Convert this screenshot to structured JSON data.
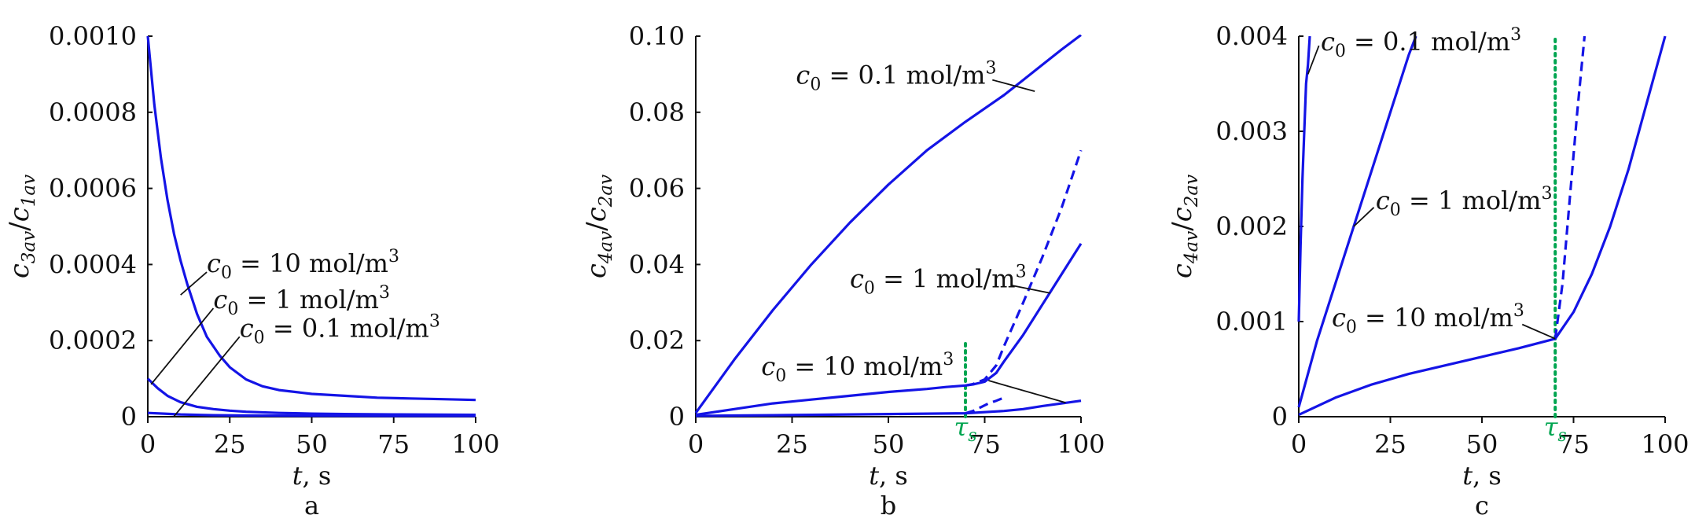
{
  "chart_data": [
    {
      "panel": "a",
      "type": "line",
      "xlabel": "t, s",
      "ylabel": "c3av/c1av",
      "ylabel_parts": {
        "base1": "c",
        "sub1": "3av",
        "slash": "/",
        "base2": "c",
        "sub2": "1av"
      },
      "xlim": [
        0,
        100
      ],
      "ylim": [
        0,
        0.001
      ],
      "xticks": [
        "0",
        "25",
        "50",
        "75",
        "100"
      ],
      "yticks": [
        "0",
        "0.0002",
        "0.0004",
        "0.0006",
        "0.0008",
        "0.0010"
      ],
      "series": [
        {
          "name": "c0 = 10 mol/m3",
          "label_main": "c",
          "label_sub": "0",
          "label_rest": " = 10 mol/m",
          "label_sup": "3",
          "style": "solid",
          "x": [
            0,
            2,
            4,
            6,
            8,
            10,
            12,
            15,
            18,
            20,
            22,
            25,
            30,
            35,
            40,
            50,
            60,
            70,
            80,
            90,
            100
          ],
          "y": [
            0.001,
            0.00082,
            0.00068,
            0.00057,
            0.00048,
            0.00041,
            0.00035,
            0.00027,
            0.00021,
            0.000185,
            0.00016,
            0.00013,
            9.8e-05,
            8e-05,
            7e-05,
            6e-05,
            5.5e-05,
            5e-05,
            4.8e-05,
            4.6e-05,
            4.4e-05
          ]
        },
        {
          "name": "c0 = 1 mol/m3",
          "label_main": "c",
          "label_sub": "0",
          "label_rest": " = 1 mol/m",
          "label_sup": "3",
          "style": "solid",
          "x": [
            0,
            3,
            6,
            10,
            15,
            20,
            25,
            30,
            40,
            50,
            60,
            75,
            100
          ],
          "y": [
            0.0001,
            7.5e-05,
            5.5e-05,
            3.8e-05,
            2.6e-05,
            2e-05,
            1.6e-05,
            1.3e-05,
            1e-05,
            8e-06,
            7e-06,
            6e-06,
            5e-06
          ]
        },
        {
          "name": "c0 = 0.1 mol/m3",
          "label_main": "c",
          "label_sub": "0",
          "label_rest": " = 0.1 mol/m",
          "label_sup": "3",
          "style": "solid",
          "x": [
            0,
            5,
            10,
            20,
            30,
            50,
            75,
            100
          ],
          "y": [
            1e-05,
            8e-06,
            6e-06,
            4e-06,
            3e-06,
            2.5e-06,
            2e-06,
            2e-06
          ]
        }
      ],
      "annotations": [
        {
          "series": 0,
          "text_x": 18,
          "text_y": 0.00038,
          "point_x": 10,
          "point_y": 0.00032
        },
        {
          "series": 1,
          "text_x": 20,
          "text_y": 0.000285,
          "point_x": 1,
          "point_y": 8.5e-05
        },
        {
          "series": 2,
          "text_x": 28,
          "text_y": 0.00021,
          "point_x": 8,
          "point_y": 1e-06
        }
      ],
      "sublabel": "a"
    },
    {
      "panel": "b",
      "type": "line",
      "xlabel": "t, s",
      "ylabel": "c4av/c2av",
      "ylabel_parts": {
        "base1": "c",
        "sub1": "4av",
        "slash": "/",
        "base2": "c",
        "sub2": "2av"
      },
      "xlim": [
        0,
        100
      ],
      "ylim": [
        0,
        0.1
      ],
      "xticks": [
        "0",
        "25",
        "50",
        "75",
        "100"
      ],
      "yticks": [
        "0",
        "0.02",
        "0.04",
        "0.06",
        "0.08",
        "0.10"
      ],
      "ts_x": 70,
      "ts_label": "τs",
      "series": [
        {
          "name": "c0 = 0.1 mol/m3",
          "style": "solid",
          "x": [
            0,
            5,
            10,
            20,
            30,
            40,
            50,
            60,
            70,
            80,
            85,
            90,
            95,
            100
          ],
          "y": [
            0.001,
            0.008,
            0.015,
            0.028,
            0.04,
            0.051,
            0.061,
            0.07,
            0.0775,
            0.0845,
            0.0885,
            0.0925,
            0.0965,
            0.1003
          ]
        },
        {
          "name": "c0 = 1 mol/m3",
          "style": "solid",
          "x": [
            0,
            10,
            20,
            30,
            40,
            50,
            60,
            65,
            70,
            72,
            75,
            78,
            80,
            85,
            90,
            95,
            100
          ],
          "y": [
            0.0005,
            0.002,
            0.0035,
            0.0045,
            0.0055,
            0.0065,
            0.0073,
            0.0078,
            0.0082,
            0.0085,
            0.0092,
            0.0115,
            0.0145,
            0.0215,
            0.0295,
            0.0375,
            0.0455
          ]
        },
        {
          "name": "c0 = 1 mol/m3 (dashed)",
          "style": "dashed",
          "x": [
            70,
            72,
            75,
            78,
            80,
            85,
            90,
            95,
            100
          ],
          "y": [
            0.0082,
            0.0086,
            0.0098,
            0.0135,
            0.0185,
            0.03,
            0.042,
            0.055,
            0.07
          ]
        },
        {
          "name": "c0 = 10 mol/m3",
          "style": "solid",
          "x": [
            0,
            10,
            20,
            30,
            40,
            50,
            60,
            70,
            80,
            85,
            90,
            95,
            100
          ],
          "y": [
            0.0002,
            0.0003,
            0.0004,
            0.0005,
            0.0006,
            0.0007,
            0.0008,
            0.0009,
            0.0015,
            0.002,
            0.0028,
            0.0035,
            0.0042
          ]
        },
        {
          "name": "c0 = 10 mol/m3 (dashed)",
          "style": "dashed",
          "x": [
            70,
            72,
            74,
            76,
            78,
            80
          ],
          "y": [
            0.0009,
            0.0015,
            0.0025,
            0.0035,
            0.0042,
            0.005
          ]
        }
      ],
      "annotations": [
        {
          "series": 0,
          "label_main": "c",
          "label_sub": "0",
          "label_rest": " = 0.1 mol/m",
          "label_sup": "3",
          "text_x": 26,
          "text_y": 0.0875,
          "point_x": 88,
          "point_y": 0.0855,
          "line_start_x": 77,
          "line_start_y": 0.0885
        },
        {
          "series": 1,
          "label_main": "c",
          "label_sub": "0",
          "label_rest": " = 1 mol/m",
          "label_sup": "3",
          "text_x": 40,
          "text_y": 0.034,
          "point_x": 92,
          "point_y": 0.0325,
          "line_start_x": 82,
          "line_start_y": 0.0345
        },
        {
          "series": 3,
          "label_main": "c",
          "label_sub": "0",
          "label_rest": " = 10 mol/m",
          "label_sup": "3",
          "text_x": 17,
          "text_y": 0.011,
          "point_x": 96,
          "point_y": 0.0037,
          "line_start_x": 76,
          "line_start_y": 0.0095
        }
      ],
      "sublabel": "b"
    },
    {
      "panel": "c",
      "type": "line",
      "xlabel": "t, s",
      "ylabel": "c4av/c2av",
      "ylabel_parts": {
        "base1": "c",
        "sub1": "4av",
        "slash": "/",
        "base2": "c",
        "sub2": "2av"
      },
      "xlim": [
        0,
        100
      ],
      "ylim": [
        0,
        0.004
      ],
      "xticks": [
        "0",
        "25",
        "50",
        "75",
        "100"
      ],
      "yticks": [
        "0",
        "0.001",
        "0.002",
        "0.003",
        "0.004"
      ],
      "ts_x": 70,
      "ts_label": "τs",
      "series": [
        {
          "name": "c0 = 0.1 mol/m3",
          "style": "solid",
          "x": [
            0,
            0.5,
            1,
            1.5,
            2,
            2.5,
            3
          ],
          "y": [
            0.001,
            0.0018,
            0.0025,
            0.003,
            0.0035,
            0.0037,
            0.004
          ]
        },
        {
          "name": "c0 = 1 mol/m3",
          "style": "solid",
          "x": [
            0,
            5,
            10,
            15,
            20,
            25,
            30,
            32
          ],
          "y": [
            0.0001,
            0.0008,
            0.0014,
            0.002,
            0.0026,
            0.0032,
            0.0038,
            0.004
          ]
        },
        {
          "name": "c0 = 10 mol/m3",
          "style": "solid",
          "x": [
            0,
            10,
            20,
            30,
            40,
            50,
            60,
            70,
            75,
            80,
            85,
            90,
            95,
            100
          ],
          "y": [
            2e-05,
            0.0002,
            0.00034,
            0.00045,
            0.00054,
            0.00063,
            0.00072,
            0.00082,
            0.0011,
            0.0015,
            0.002,
            0.0026,
            0.0033,
            0.004
          ]
        },
        {
          "name": "c0 = 10 mol/m3 (dashed)",
          "style": "dashed",
          "x": [
            70,
            72,
            74,
            76,
            78
          ],
          "y": [
            0.00082,
            0.0014,
            0.0023,
            0.0032,
            0.004
          ]
        }
      ],
      "annotations": [
        {
          "series": 0,
          "label_main": "c",
          "label_sub": "0",
          "label_rest": " = 0.1 mol/m",
          "label_sup": "3",
          "text_x": 6,
          "text_y": 0.00385,
          "point_x": 2.5,
          "point_y": 0.0036,
          "line_start_x": 5.5,
          "line_start_y": 0.0039
        },
        {
          "series": 1,
          "label_main": "c",
          "label_sub": "0",
          "label_rest": " = 1 mol/m",
          "label_sup": "3",
          "text_x": 21,
          "text_y": 0.00218,
          "point_x": 15,
          "point_y": 0.002,
          "line_start_x": 20.5,
          "line_start_y": 0.0022
        },
        {
          "series": 2,
          "label_main": "c",
          "label_sub": "0",
          "label_rest": " = 10 mol/m",
          "label_sup": "3",
          "text_x": 9,
          "text_y": 0.00095,
          "point_x": 70,
          "point_y": 0.00082,
          "line_start_x": 61,
          "line_start_y": 0.00097
        }
      ],
      "sublabel": "c"
    }
  ],
  "colors": {
    "series": "#1414e6",
    "ts": "#00a550",
    "axis": "#111111"
  }
}
